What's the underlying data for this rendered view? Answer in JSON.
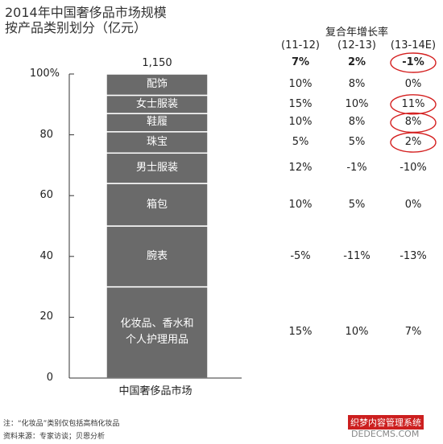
{
  "title": {
    "line1": "2014年中国奢侈品市场规模",
    "line2": "按产品类别划分（亿元）"
  },
  "cagr": {
    "header": "复合年增长率",
    "periods": [
      "(11-12)",
      "(12-13)",
      "(13-14E)"
    ],
    "total_row": [
      "7%",
      "2%",
      "-1%"
    ],
    "circled": [
      [
        0,
        2
      ],
      [
        5,
        2
      ],
      [
        6,
        2
      ],
      [
        7,
        2
      ]
    ]
  },
  "chart_data": {
    "type": "bar",
    "stacked": true,
    "categories": [
      "中国奢侈品市场"
    ],
    "total_label": "1,150",
    "ylim": [
      0,
      100
    ],
    "yticks": [
      "0",
      "20",
      "40",
      "60",
      "80",
      "100%"
    ],
    "series": [
      {
        "name": "化妆品、香水和个人护理用品",
        "value": 30,
        "growth": [
          "15%",
          "10%",
          "7%"
        ]
      },
      {
        "name": "腕表",
        "value": 20,
        "growth": [
          "-5%",
          "-11%",
          "-13%"
        ]
      },
      {
        "name": "箱包",
        "value": 14,
        "growth": [
          "10%",
          "5%",
          "0%"
        ]
      },
      {
        "name": "男士服装",
        "value": 10,
        "growth": [
          "12%",
          "-1%",
          "-10%"
        ]
      },
      {
        "name": "珠宝",
        "value": 7,
        "growth": [
          "5%",
          "5%",
          "2%"
        ]
      },
      {
        "name": "鞋履",
        "value": 6,
        "growth": [
          "10%",
          "8%",
          "8%"
        ]
      },
      {
        "name": "女士服装",
        "value": 6,
        "growth": [
          "15%",
          "10%",
          "11%"
        ]
      },
      {
        "name": "配饰",
        "value": 7,
        "growth": [
          "10%",
          "8%",
          "0%"
        ]
      }
    ]
  },
  "footnotes": [
    "注：“化妆品”类别仅包括高档化妆品",
    "资料来源：专家访谈；贝恩分析"
  ],
  "watermark": {
    "line1": "织梦内容管理系统",
    "line2": "DEDECMS.COM"
  },
  "colors": {
    "bar": "#6a6a6a",
    "separator": "#ffffff",
    "circle": "#d42020",
    "axis": "#333333"
  }
}
